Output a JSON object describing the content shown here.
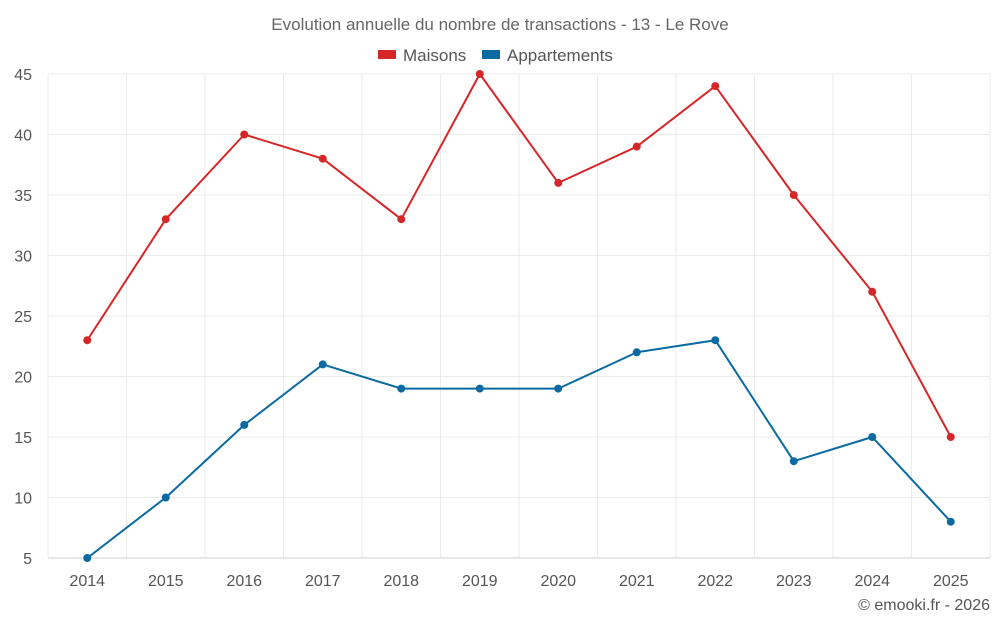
{
  "chart_data": {
    "type": "line",
    "title": "Evolution annuelle du nombre de transactions - 13 - Le Rove",
    "categories": [
      "2014",
      "2015",
      "2016",
      "2017",
      "2018",
      "2019",
      "2020",
      "2021",
      "2022",
      "2023",
      "2024",
      "2025"
    ],
    "series": [
      {
        "name": "Maisons",
        "color": "#d62728",
        "values": [
          23,
          33,
          40,
          38,
          33,
          45,
          36,
          39,
          44,
          35,
          27,
          15
        ]
      },
      {
        "name": "Appartements",
        "color": "#0a6aa1",
        "values": [
          5,
          10,
          16,
          21,
          19,
          19,
          19,
          22,
          23,
          13,
          15,
          8
        ]
      }
    ],
    "y_ticks": [
      "5",
      "10",
      "15",
      "20",
      "25",
      "30",
      "35",
      "40",
      "45"
    ],
    "ylim": [
      5,
      45
    ],
    "grid": true,
    "legend_position": "top-center",
    "xlabel": "",
    "ylabel": ""
  },
  "footer": {
    "credit": "© emooki.fr - 2026"
  },
  "colors": {
    "grid": "#ebebeb",
    "axis_text": "#555555",
    "title_text": "#666666"
  }
}
